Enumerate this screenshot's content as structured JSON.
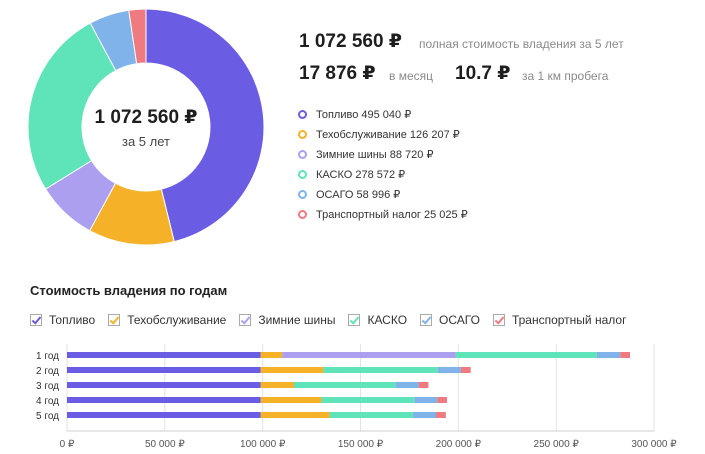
{
  "summary": {
    "total": "1 072 560 ₽",
    "total_label": "полная стоимость владения за 5 лет",
    "monthly": "17 876 ₽",
    "monthly_label": "в месяц",
    "per_km": "10.7 ₽",
    "per_km_label": "за 1 км пробега",
    "center_total": "1 072 560 ₽",
    "center_sub": "за 5 лет"
  },
  "breakdown_title": "Стоимость владения по годам",
  "colors": {
    "fuel": "#6a5de3",
    "maintenance": "#f5b228",
    "winter": "#ac9ff0",
    "kasko": "#5fe4b9",
    "osago": "#7fb3ea",
    "tax": "#ef7a7f"
  },
  "chart_data": [
    {
      "type": "pie",
      "title": "1 072 560 ₽ за 5 лет",
      "slices": [
        {
          "name": "Топливо",
          "value": 495040,
          "label": "Топливо 495 040 ₽"
        },
        {
          "name": "Техобслуживание",
          "value": 126207,
          "label": "Техобслуживание 126 207 ₽"
        },
        {
          "name": "Зимние шины",
          "value": 88720,
          "label": "Зимние шины 88 720 ₽"
        },
        {
          "name": "КАСКО",
          "value": 278572,
          "label": "КАСКО 278 572 ₽"
        },
        {
          "name": "ОСАГО",
          "value": 58996,
          "label": "ОСАГО 58 996 ₽"
        },
        {
          "name": "Транспортный налог",
          "value": 25025,
          "label": "Транспортный налог 25 025 ₽"
        }
      ]
    },
    {
      "type": "bar",
      "orientation": "horizontal",
      "stacked": true,
      "title": "Стоимость владения по годам",
      "categories": [
        "1 год",
        "2 год",
        "3 год",
        "4 год",
        "5 год"
      ],
      "series": [
        {
          "name": "Топливо",
          "values": [
            99008,
            99008,
            99008,
            99008,
            99008
          ]
        },
        {
          "name": "Техобслуживание",
          "values": [
            11000,
            32000,
            17000,
            31000,
            35207
          ]
        },
        {
          "name": "Зимние шины",
          "values": [
            88720,
            0,
            0,
            0,
            0
          ]
        },
        {
          "name": "КАСКО",
          "values": [
            72000,
            58500,
            52000,
            47500,
            42572
          ]
        },
        {
          "name": "ОСАГО",
          "values": [
            12000,
            11800,
            11700,
            11700,
            11796
          ]
        },
        {
          "name": "Транспортный налог",
          "values": [
            5005,
            5005,
            5005,
            5005,
            5005
          ]
        }
      ],
      "xlim": [
        0,
        300000
      ],
      "xticks": [
        0,
        50000,
        100000,
        150000,
        200000,
        250000,
        300000
      ],
      "xtick_labels": [
        "0 ₽",
        "50 000 ₽",
        "100 000 ₽",
        "150 000 ₽",
        "200 000 ₽",
        "250 000 ₽",
        "300 000 ₽"
      ]
    }
  ]
}
